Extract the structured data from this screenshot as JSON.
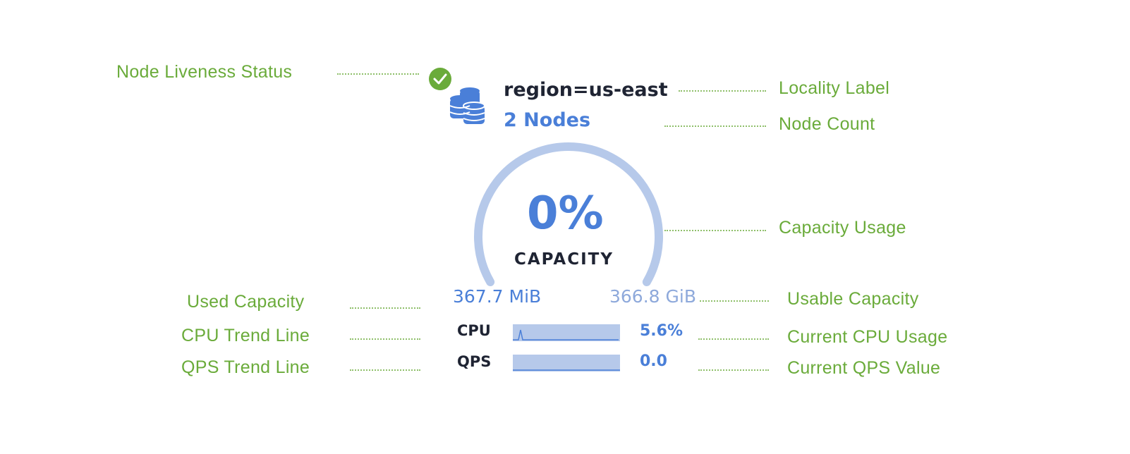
{
  "annotations": {
    "liveness": "Node Liveness Status",
    "locality": "Locality Label",
    "node_count": "Node Count",
    "capacity_usage": "Capacity Usage",
    "used_capacity": "Used Capacity",
    "usable_capacity": "Usable Capacity",
    "cpu_trend": "CPU Trend Line",
    "cpu_current": "Current CPU Usage",
    "qps_trend": "QPS Trend Line",
    "qps_current": "Current QPS Value"
  },
  "node": {
    "locality": "region=us-east",
    "count": "2 Nodes",
    "status": "live",
    "icon": "database-stack-icon"
  },
  "capacity": {
    "percent": "0%",
    "label": "CAPACITY",
    "used": "367.7 MiB",
    "usable": "366.8 GiB"
  },
  "metrics": {
    "cpu_label": "CPU",
    "cpu_value": "5.6%",
    "qps_label": "QPS",
    "qps_value": "0.0"
  },
  "colors": {
    "annotation": "#6aab3a",
    "accent": "#4a7fd8",
    "gauge": "#b6c9ea",
    "status": "#6aab3a"
  }
}
